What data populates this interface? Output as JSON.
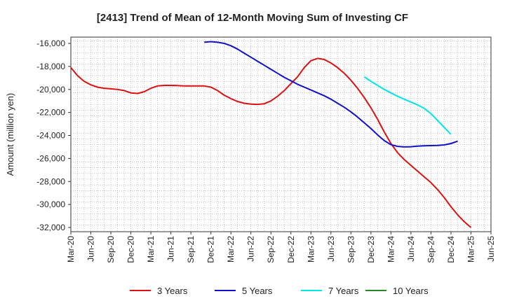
{
  "chart_data": {
    "type": "line",
    "title": "[2413]  Trend of Mean of 12-Month Moving Sum of Investing CF",
    "xlabel": "",
    "ylabel": "Amount (million yen)",
    "ylim": [
      -32300,
      -15700
    ],
    "yticks": [
      -16000,
      -18000,
      -20000,
      -22000,
      -24000,
      -26000,
      -28000,
      -30000,
      -32000
    ],
    "ytick_labels": [
      "-16,000",
      "-18,000",
      "-20,000",
      "-22,000",
      "-24,000",
      "-26,000",
      "-28,000",
      "-30,000",
      "-32,000"
    ],
    "x_ticks": [
      "Mar-20",
      "Jun-20",
      "Sep-20",
      "Dec-20",
      "Mar-21",
      "Jun-21",
      "Sep-21",
      "Dec-21",
      "Mar-22",
      "Jun-22",
      "Sep-22",
      "Dec-22",
      "Mar-23",
      "Jun-23",
      "Sep-23",
      "Dec-23",
      "Mar-24",
      "Jun-24",
      "Sep-24",
      "Dec-24",
      "Mar-25",
      "Jun-25"
    ],
    "grid": true,
    "legend_position": "bottom",
    "series": [
      {
        "name": "3 Years",
        "color": "#dd1111",
        "start_index": 0,
        "values": [
          -18100,
          -18800,
          -19300,
          -19600,
          -19800,
          -19900,
          -19950,
          -20000,
          -20100,
          -20300,
          -20350,
          -20200,
          -19900,
          -19700,
          -19650,
          -19650,
          -19670,
          -19700,
          -19700,
          -19700,
          -19700,
          -19800,
          -20100,
          -20500,
          -20800,
          -21050,
          -21200,
          -21280,
          -21300,
          -21250,
          -21000,
          -20600,
          -20100,
          -19500,
          -18900,
          -18100,
          -17500,
          -17300,
          -17400,
          -17700,
          -18100,
          -18600,
          -19200,
          -19900,
          -20700,
          -21600,
          -22600,
          -23700,
          -24700,
          -25500,
          -26100,
          -26600,
          -27100,
          -27600,
          -28100,
          -28700,
          -29400,
          -30200,
          -30900,
          -31500,
          -32000
        ]
      },
      {
        "name": "5 Years",
        "color": "#1111cc",
        "start_index": 20,
        "values": [
          -15900,
          -15850,
          -15900,
          -16000,
          -16200,
          -16500,
          -16850,
          -17200,
          -17550,
          -17900,
          -18250,
          -18600,
          -18950,
          -19250,
          -19550,
          -19800,
          -20050,
          -20300,
          -20550,
          -20850,
          -21200,
          -21550,
          -21950,
          -22400,
          -22900,
          -23400,
          -23950,
          -24450,
          -24800,
          -24950,
          -25000,
          -24980,
          -24930,
          -24900,
          -24880,
          -24870,
          -24820,
          -24700,
          -24500
        ]
      },
      {
        "name": "7 Years",
        "color": "#00e5e5",
        "start_index": 44,
        "values": [
          -18900,
          -19300,
          -19650,
          -20000,
          -20300,
          -20600,
          -20850,
          -21100,
          -21350,
          -21650,
          -22100,
          -22700,
          -23300,
          -23900
        ]
      },
      {
        "name": "10 Years",
        "color": "#228b22",
        "start_index": 0,
        "values": []
      }
    ]
  }
}
